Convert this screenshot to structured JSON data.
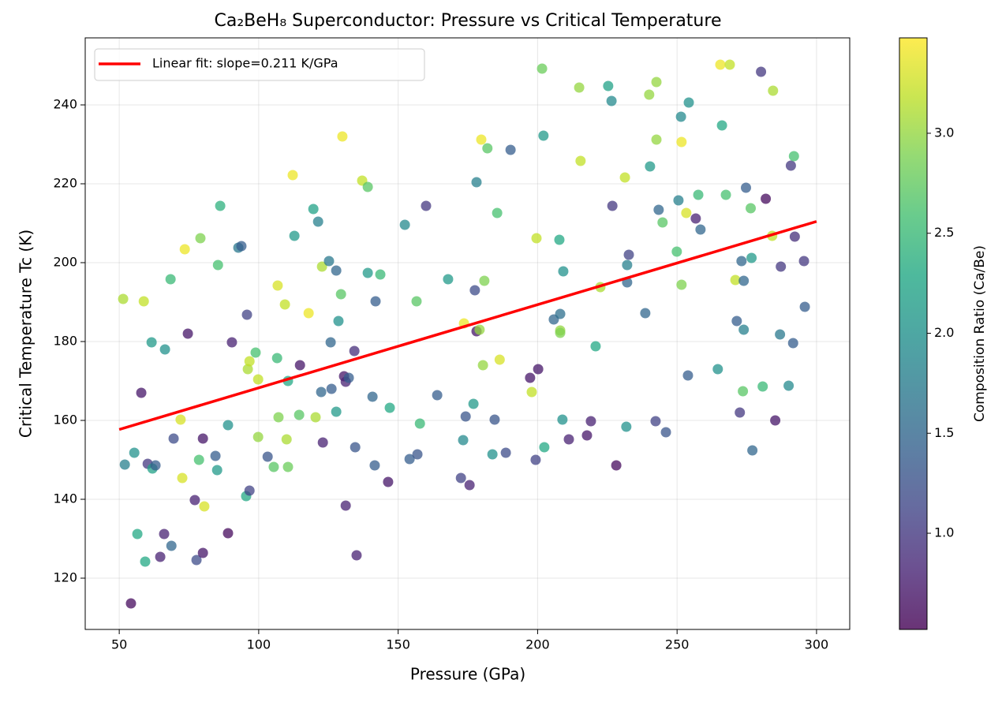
{
  "chart_data": {
    "type": "scatter",
    "title": "Ca₂BeH₈ Superconductor: Pressure vs Critical Temperature",
    "xlabel": "Pressure (GPa)",
    "ylabel": "Critical Temperature Tc (K)",
    "xlim": [
      37.8,
      311.9
    ],
    "ylim": [
      107,
      257
    ],
    "xticks": [
      50,
      100,
      150,
      200,
      250,
      300
    ],
    "yticks": [
      120,
      140,
      160,
      180,
      200,
      220,
      240
    ],
    "grid": true,
    "legend": "upper left",
    "x": [
      51.4,
      52,
      54.2,
      55.4,
      56.5,
      57.9,
      58.8,
      59.3,
      60.2,
      61.6,
      61.9,
      63,
      64.7,
      66.1,
      66.4,
      68.4,
      68.7,
      69.5,
      72,
      72.6,
      73.5,
      74.6,
      77.1,
      77.7,
      78.6,
      79.1,
      80,
      80,
      80.5,
      84.5,
      85.1,
      85.4,
      86.2,
      89,
      89,
      90.4,
      92.7,
      93.8,
      95.5,
      95.8,
      96.1,
      96.7,
      96.7,
      98.9,
      99.8,
      99.8,
      103.2,
      105.4,
      106.6,
      106.8,
      107.1,
      109.4,
      110,
      110.5,
      110.5,
      112.2,
      112.8,
      114.5,
      114.8,
      117.9,
      119.6,
      120.4,
      121.3,
      122.4,
      122.7,
      123,
      125.2,
      125.8,
      126.1,
      127.8,
      127.8,
      128.6,
      129.5,
      130,
      130.6,
      131.2,
      131.2,
      132.3,
      134.3,
      134.6,
      135.1,
      137.1,
      139.1,
      139.1,
      140.8,
      141.6,
      141.9,
      143.6,
      146.4,
      147,
      152.4,
      154.1,
      156.6,
      156.9,
      157.8,
      160,
      164,
      167.9,
      172.5,
      173.3,
      173.6,
      174.2,
      175.6,
      177,
      177.5,
      178.1,
      178.1,
      179.2,
      179.8,
      180.4,
      180.9,
      182,
      183.8,
      184.6,
      185.5,
      186.4,
      188.6,
      190.3,
      197.3,
      197.9,
      199.3,
      199.6,
      200.2,
      201.6,
      202.4,
      202.1,
      205.8,
      207.8,
      208.1,
      208.1,
      208.1,
      208.9,
      209.2,
      211.2,
      214.9,
      215.4,
      217.7,
      219.1,
      220.8,
      222.5,
      225.3,
      226.5,
      226.8,
      228.2,
      231.3,
      231.8,
      232.1,
      232.1,
      232.7,
      238.6,
      240,
      240.3,
      242.3,
      242.6,
      242.6,
      243.4,
      244.8,
      246,
      249.9,
      250.5,
      251.4,
      251.6,
      251.6,
      253.3,
      253.9,
      254.2,
      256.7,
      257.6,
      258.4,
      264.6,
      265.5,
      266.1,
      267.5,
      268.9,
      270.9,
      271.4,
      272.5,
      273.1,
      273.6,
      273.9,
      273.9,
      274.7,
      276.4,
      276.7,
      277,
      280.1,
      280.7,
      281.8,
      284.1,
      284.4,
      285.2,
      286.9,
      287.2,
      290,
      290.8,
      291.6,
      291.9,
      292.2,
      295.5,
      295.8
    ],
    "values": [
      190.8,
      148.8,
      113.6,
      151.8,
      131.2,
      167,
      190.2,
      124.2,
      149,
      179.8,
      147.8,
      148.6,
      125.4,
      131.2,
      178,
      195.8,
      128.2,
      155.4,
      160.2,
      145.4,
      203.4,
      182,
      139.8,
      124.6,
      150,
      206.2,
      155.4,
      126.4,
      138.2,
      151,
      147.4,
      199.4,
      214.4,
      131.4,
      158.8,
      179.8,
      203.8,
      204.2,
      140.8,
      186.8,
      173,
      175,
      142.2,
      177.2,
      170.4,
      155.8,
      150.8,
      148.2,
      175.8,
      194.2,
      160.8,
      189.4,
      155.2,
      148.2,
      170,
      222.2,
      206.8,
      161.4,
      174,
      187.2,
      213.6,
      160.8,
      210.4,
      167.2,
      199,
      154.4,
      200.4,
      179.8,
      168,
      198,
      162.2,
      185.2,
      192,
      232,
      171.2,
      169.8,
      138.4,
      170.8,
      177.6,
      153.2,
      125.8,
      220.8,
      219.2,
      197.4,
      166,
      148.6,
      190.2,
      197,
      144.4,
      163.2,
      209.6,
      150.2,
      190.2,
      151.4,
      159.2,
      214.4,
      166.4,
      195.8,
      145.4,
      155,
      184.6,
      161,
      143.6,
      164.2,
      193,
      220.4,
      182.6,
      183,
      231.2,
      174,
      195.4,
      229,
      151.4,
      160.2,
      212.6,
      175.4,
      151.8,
      228.6,
      170.8,
      167.2,
      150,
      206.2,
      173,
      249.2,
      153.2,
      232.2,
      185.6,
      205.8,
      187,
      182.8,
      182.2,
      160.2,
      197.8,
      155.2,
      244.4,
      225.8,
      156.2,
      159.8,
      178.8,
      193.8,
      244.8,
      241,
      214.4,
      148.6,
      221.6,
      158.4,
      199.4,
      195,
      202,
      187.2,
      242.6,
      224.4,
      159.8,
      245.8,
      231.2,
      213.4,
      210.2,
      157,
      202.8,
      215.8,
      237,
      230.6,
      194.4,
      212.6,
      171.4,
      240.6,
      211.2,
      217.2,
      208.4,
      173,
      250.2,
      234.8,
      217.2,
      250.2,
      195.6,
      185.2,
      162,
      200.4,
      167.4,
      195.4,
      183,
      219,
      213.8,
      201.2,
      152.4,
      248.4,
      168.6,
      216.2,
      206.8,
      243.6,
      160,
      181.8,
      199,
      168.8,
      224.6,
      179.6,
      227,
      206.6,
      200.4,
      188.8
    ],
    "color_values": [
      3.1,
      1.8,
      0.6,
      2,
      2.3,
      0.7,
      3.2,
      2.3,
      1,
      2.1,
      2.2,
      1.4,
      0.8,
      0.8,
      2,
      2.5,
      1.5,
      1.2,
      3.3,
      3.3,
      3.4,
      0.7,
      0.8,
      1.2,
      2.6,
      2.9,
      0.7,
      0.7,
      3.3,
      1.4,
      2.1,
      2.6,
      2.4,
      0.6,
      2,
      0.8,
      1.7,
      1.4,
      2.3,
      1.1,
      3.1,
      3.2,
      1.1,
      2.6,
      3.2,
      3,
      1.3,
      2.7,
      2.5,
      3.3,
      2.9,
      3.2,
      3.1,
      2.8,
      2.3,
      3.4,
      2.1,
      2.7,
      0.7,
      3.4,
      2.2,
      3.1,
      1.8,
      1.5,
      3.1,
      0.8,
      1.7,
      1.5,
      1.4,
      1.5,
      2.1,
      2,
      2.7,
      3.4,
      0.7,
      0.8,
      0.8,
      1.4,
      0.9,
      1.3,
      0.8,
      3.2,
      2.7,
      2.1,
      1.5,
      1.4,
      1.4,
      2.5,
      0.7,
      2.3,
      1.9,
      1.4,
      2.7,
      1.3,
      2.5,
      1,
      1.4,
      2.1,
      1.1,
      1.9,
      3.4,
      1.3,
      0.8,
      2.1,
      1.2,
      1.8,
      0.7,
      3,
      3.4,
      3,
      2.9,
      2.7,
      2,
      1.3,
      2.6,
      3.3,
      1.2,
      1.4,
      0.7,
      3.2,
      1.1,
      3.2,
      0.7,
      2.8,
      2.3,
      2.1,
      1.5,
      2.3,
      1.6,
      3,
      2.9,
      2,
      2,
      0.8,
      3,
      3.2,
      0.7,
      0.8,
      2.3,
      3.1,
      2.2,
      1.9,
      1,
      0.6,
      3.2,
      2,
      1.8,
      1.5,
      1.1,
      1.5,
      3,
      2.1,
      1.1,
      3,
      3,
      1.5,
      2.7,
      1.3,
      2.6,
      1.8,
      1.9,
      3.4,
      2.9,
      3.3,
      1.4,
      2,
      0.8,
      2.5,
      1.5,
      2,
      3.4,
      2.3,
      2.6,
      3.2,
      3.2,
      1.4,
      1,
      1.5,
      2.7,
      1.5,
      1.8,
      1.4,
      2.7,
      2.1,
      1.5,
      1,
      2.5,
      0.6,
      3.2,
      3.1,
      0.7,
      1.7,
      1,
      1.9,
      1,
      1.4,
      2.6,
      0.9,
      1,
      1.4
    ],
    "colormap": "viridis",
    "colorbar": {
      "label": "Composition Ratio (Ca/Be)",
      "clim": [
        0.519,
        3.477
      ],
      "ticks": [
        {
          "value": 1.0,
          "label": "1.0"
        },
        {
          "value": 1.5,
          "label": "1.5"
        },
        {
          "value": 2.0,
          "label": "2.0"
        },
        {
          "value": 2.5,
          "label": "2.5"
        },
        {
          "value": 3.0,
          "label": "3.0"
        }
      ]
    },
    "fit": {
      "name": "Linear fit: slope=0.211 K/GPa",
      "color": "#ff0000",
      "x": [
        50,
        300
      ],
      "values": [
        157.7,
        210.45
      ]
    }
  }
}
